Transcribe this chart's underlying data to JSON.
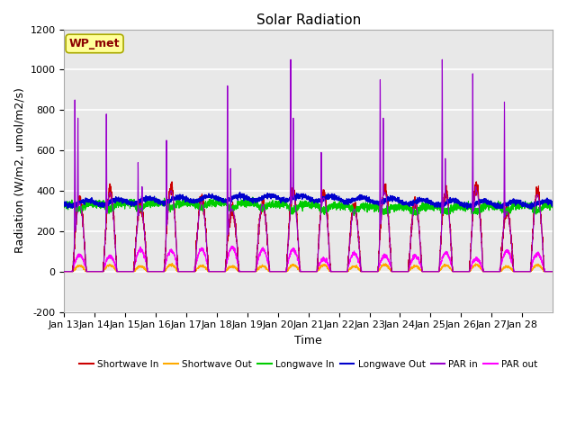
{
  "title": "Solar Radiation",
  "xlabel": "Time",
  "ylabel": "Radiation (W/m2, umol/m2/s)",
  "ylim": [
    -200,
    1200
  ],
  "xlim": [
    0,
    16
  ],
  "xtick_labels": [
    "Jan 13",
    "Jan 14",
    "Jan 15",
    "Jan 16",
    "Jan 17",
    "Jan 18",
    "Jan 19",
    "Jan 20",
    "Jan 21",
    "Jan 22",
    "Jan 23",
    "Jan 24",
    "Jan 25",
    "Jan 26",
    "Jan 27",
    "Jan 28"
  ],
  "ytick_values": [
    -200,
    0,
    200,
    400,
    600,
    800,
    1000,
    1200
  ],
  "colors": {
    "shortwave_in": "#cc0000",
    "shortwave_out": "#ffaa00",
    "longwave_in": "#00cc00",
    "longwave_out": "#0000cc",
    "par_in": "#9900cc",
    "par_out": "#ff00ff"
  },
  "annotation": {
    "text": "WP_met",
    "fontsize": 9,
    "color": "#8B0000",
    "bg_color": "#ffff99",
    "border_color": "#aaaa00"
  },
  "legend_entries": [
    "Shortwave In",
    "Shortwave Out",
    "Longwave In",
    "Longwave Out",
    "PAR in",
    "PAR out"
  ],
  "background_color": "#e8e8e8",
  "grid_color": "#ffffff",
  "title_fontsize": 11,
  "axis_fontsize": 9,
  "tick_fontsize": 8
}
